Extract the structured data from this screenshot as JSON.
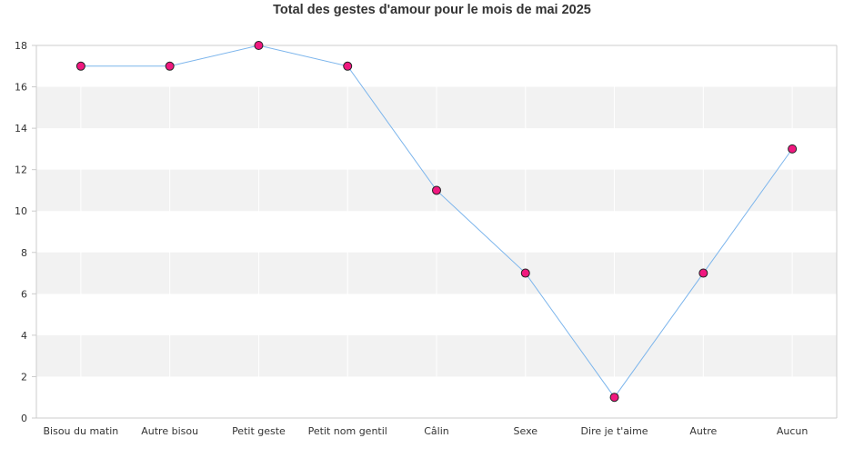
{
  "chart_data": {
    "type": "line",
    "title": "Total des gestes d'amour pour le mois de mai 2025",
    "xlabel": "",
    "ylabel": "",
    "categories": [
      "Bisou du matin",
      "Autre bisou",
      "Petit geste",
      "Petit nom gentil",
      "Câlin",
      "Sexe",
      "Dire je t'aime",
      "Autre",
      "Aucun"
    ],
    "series": [
      {
        "values": [
          17,
          17,
          18,
          17,
          11,
          7,
          1,
          7,
          13
        ]
      }
    ],
    "ylim": [
      0,
      18
    ],
    "yticks": [
      0,
      2,
      4,
      6,
      8,
      10,
      12,
      14,
      16,
      18
    ],
    "grid": true,
    "legend": "none",
    "colors": {
      "line": "#7cb5ec",
      "marker_fill": "#f0187f",
      "marker_stroke": "#222222",
      "band": "#f2f2f2",
      "axis": "#cccccc",
      "vertical_grid": "#ffffff"
    }
  }
}
